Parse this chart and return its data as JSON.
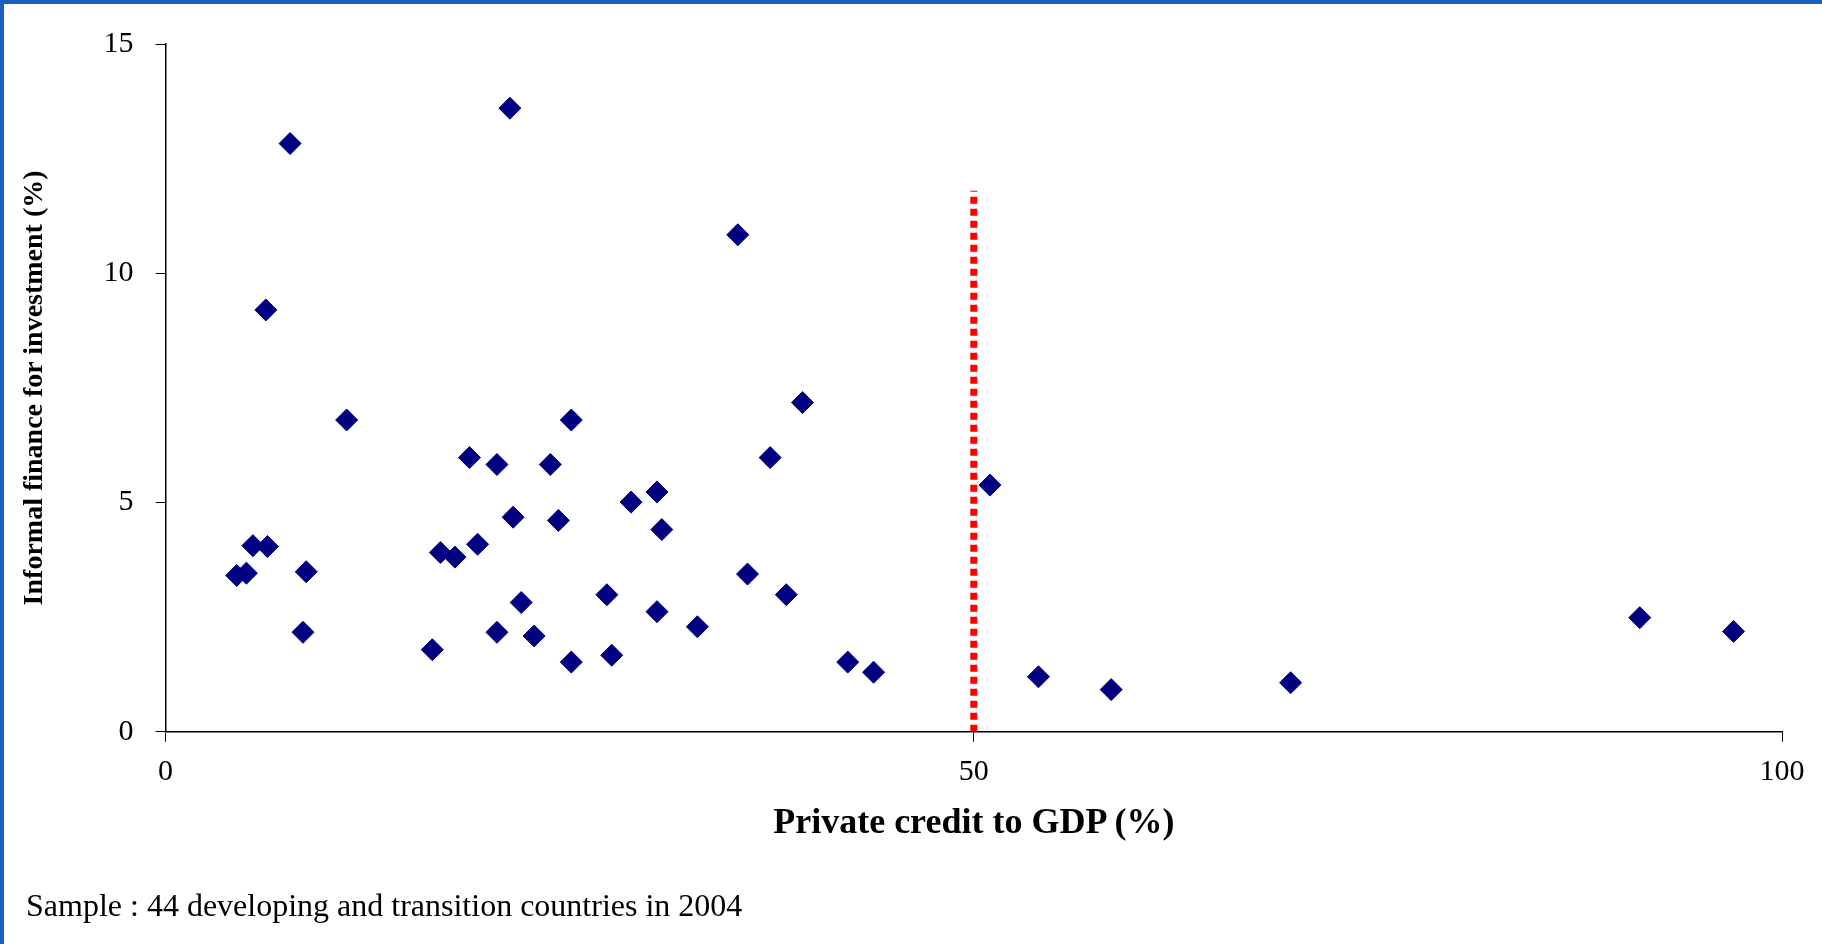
{
  "chart_data": {
    "type": "scatter",
    "xlabel": "Private credit to GDP (%)",
    "ylabel": "Informal finance for investment (%)",
    "annotations": [
      "Sample : 44 developing and transition countries in 2004"
    ],
    "xlim": [
      0,
      100
    ],
    "xticks": [
      0,
      50,
      100
    ],
    "ylim": [
      0,
      15
    ],
    "yticks": [
      0,
      5,
      10,
      15
    ],
    "grid": false,
    "legend": false,
    "marker": "diamond",
    "series": [
      {
        "color": "#000080",
        "x": [
          4.4,
          5.0,
          5.4,
          6.3,
          6.2,
          7.7,
          8.7,
          8.5,
          11.2,
          16.5,
          17.0,
          17.9,
          18.8,
          19.3,
          20.5,
          20.5,
          21.3,
          21.5,
          22.0,
          22.8,
          23.8,
          24.3,
          25.1,
          25.1,
          27.3,
          27.6,
          28.8,
          30.4,
          30.4,
          30.7,
          32.9,
          35.4,
          36.0,
          37.4,
          38.4,
          39.4,
          42.2,
          43.8,
          51.0,
          54.0,
          58.5,
          69.6,
          91.2,
          97.0
        ],
        "values": [
          3.41,
          3.46,
          4.06,
          4.04,
          9.2,
          12.83,
          3.49,
          2.17,
          6.8,
          1.79,
          3.91,
          3.81,
          5.98,
          4.09,
          5.83,
          2.17,
          13.6,
          4.68,
          2.82,
          2.09,
          5.83,
          4.61,
          6.8,
          1.52,
          2.99,
          1.67,
          5.01,
          5.23,
          2.62,
          4.41,
          2.29,
          10.84,
          3.44,
          5.98,
          2.99,
          7.18,
          1.52,
          1.3,
          5.38,
          1.2,
          0.92,
          1.07,
          2.49,
          2.19
        ]
      },
      {
        "type": "line",
        "color": "#ff0000",
        "line_style": "dotted",
        "marker": "none",
        "x": [
          50,
          50
        ],
        "values": [
          0,
          11.8
        ]
      }
    ]
  }
}
